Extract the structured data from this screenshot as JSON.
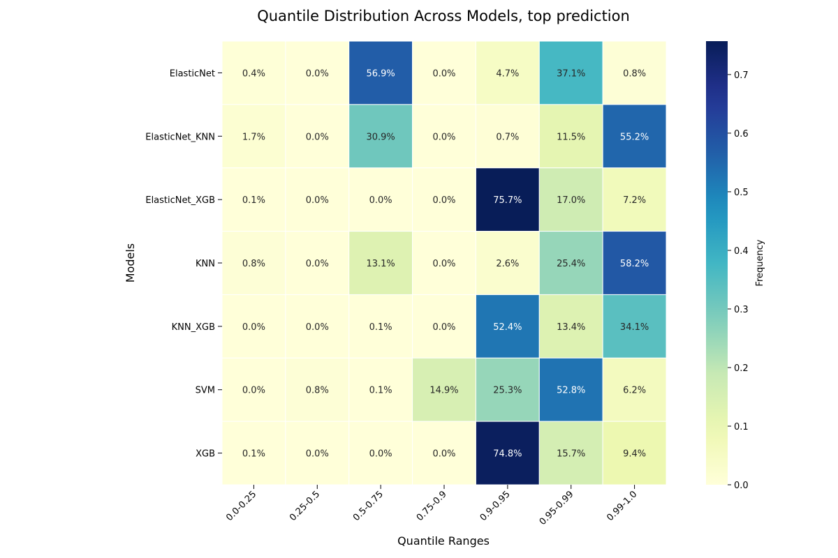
{
  "chart_data": {
    "type": "heatmap",
    "title": "Quantile Distribution Across Models, top prediction",
    "xlabel": "Quantile Ranges",
    "ylabel": "Models",
    "colorbar_label": "Frequency",
    "colormap": "YlGnBu",
    "x": [
      "0.0-0.25",
      "0.25-0.5",
      "0.5-0.75",
      "0.75-0.9",
      "0.9-0.95",
      "0.95-0.99",
      "0.99-1.0"
    ],
    "y": [
      "ElasticNet",
      "ElasticNet_KNN",
      "ElasticNet_XGB",
      "KNN",
      "KNN_XGB",
      "SVM",
      "XGB"
    ],
    "values": [
      [
        0.004,
        0.0,
        0.569,
        0.0,
        0.047,
        0.371,
        0.008
      ],
      [
        0.017,
        0.0,
        0.309,
        0.0,
        0.007,
        0.115,
        0.552
      ],
      [
        0.001,
        0.0,
        0.0,
        0.0,
        0.757,
        0.17,
        0.072
      ],
      [
        0.008,
        0.0,
        0.131,
        0.0,
        0.026,
        0.254,
        0.582
      ],
      [
        0.0,
        0.0,
        0.001,
        0.0,
        0.524,
        0.134,
        0.341
      ],
      [
        0.0,
        0.008,
        0.001,
        0.149,
        0.253,
        0.528,
        0.062
      ],
      [
        0.001,
        0.0,
        0.0,
        0.0,
        0.748,
        0.157,
        0.094
      ]
    ],
    "cell_labels": [
      [
        "0.4%",
        "0.0%",
        "56.9%",
        "0.0%",
        "4.7%",
        "37.1%",
        "0.8%"
      ],
      [
        "1.7%",
        "0.0%",
        "30.9%",
        "0.0%",
        "0.7%",
        "11.5%",
        "55.2%"
      ],
      [
        "0.1%",
        "0.0%",
        "0.0%",
        "0.0%",
        "75.7%",
        "17.0%",
        "7.2%"
      ],
      [
        "0.8%",
        "0.0%",
        "13.1%",
        "0.0%",
        "2.6%",
        "25.4%",
        "58.2%"
      ],
      [
        "0.0%",
        "0.0%",
        "0.1%",
        "0.0%",
        "52.4%",
        "13.4%",
        "34.1%"
      ],
      [
        "0.0%",
        "0.8%",
        "0.1%",
        "14.9%",
        "25.3%",
        "52.8%",
        "6.2%"
      ],
      [
        "0.1%",
        "0.0%",
        "0.0%",
        "0.0%",
        "74.8%",
        "15.7%",
        "9.4%"
      ]
    ],
    "colorbar_range": [
      0,
      0.757
    ],
    "colorbar_ticks": [
      "0.0",
      "0.1",
      "0.2",
      "0.3",
      "0.4",
      "0.5",
      "0.6",
      "0.7"
    ]
  }
}
